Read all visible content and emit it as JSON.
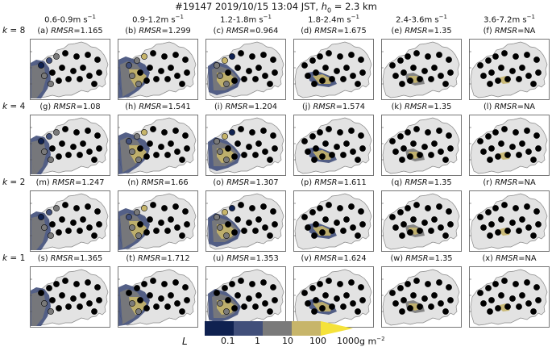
{
  "title": {
    "prefix": "#19147 2019/10/15 13:04 JST, ",
    "h_symbol": "h",
    "h_sub": "0",
    "h_value": " = 2.3 km"
  },
  "columns": [
    {
      "range": "0.6-0.9m s",
      "sup": "−1"
    },
    {
      "range": "0.9-1.2m s",
      "sup": "−1"
    },
    {
      "range": "1.2-1.8m s",
      "sup": "−1"
    },
    {
      "range": "1.8-2.4m s",
      "sup": "−1"
    },
    {
      "range": "2.4-3.6m s",
      "sup": "−1"
    },
    {
      "range": "3.6-7.2m s",
      "sup": "−1"
    }
  ],
  "rows": [
    {
      "k_symbol": "k",
      "k_value": " = 8"
    },
    {
      "k_symbol": "k",
      "k_value": " = 4"
    },
    {
      "k_symbol": "k",
      "k_value": " = 2"
    },
    {
      "k_symbol": "k",
      "k_value": " = 1"
    }
  ],
  "panels": [
    [
      {
        "letter": "(a) ",
        "metric": "RMSR",
        "value": "=1.165"
      },
      {
        "letter": "(b) ",
        "metric": "RMSR",
        "value": "=1.299"
      },
      {
        "letter": "(c) ",
        "metric": "RMSR",
        "value": "=0.964"
      },
      {
        "letter": "(d) ",
        "metric": "RMSR",
        "value": "=1.675"
      },
      {
        "letter": "(e) ",
        "metric": "RMSR",
        "value": "=1.35"
      },
      {
        "letter": "(f) ",
        "metric": "RMSR",
        "value": "=NA"
      }
    ],
    [
      {
        "letter": "(g) ",
        "metric": "RMSR",
        "value": "=1.08"
      },
      {
        "letter": "(h) ",
        "metric": "RMSR",
        "value": "=1.541"
      },
      {
        "letter": "(i) ",
        "metric": "RMSR",
        "value": "=1.204"
      },
      {
        "letter": "(j) ",
        "metric": "RMSR",
        "value": "=1.574"
      },
      {
        "letter": "(k) ",
        "metric": "RMSR",
        "value": "=1.35"
      },
      {
        "letter": "(l) ",
        "metric": "RMSR",
        "value": "=NA"
      }
    ],
    [
      {
        "letter": "(m) ",
        "metric": "RMSR",
        "value": "=1.247"
      },
      {
        "letter": "(n) ",
        "metric": "RMSR",
        "value": "=1.66"
      },
      {
        "letter": "(o) ",
        "metric": "RMSR",
        "value": "=1.307"
      },
      {
        "letter": "(p) ",
        "metric": "RMSR",
        "value": "=1.611"
      },
      {
        "letter": "(q) ",
        "metric": "RMSR",
        "value": "=1.35"
      },
      {
        "letter": "(r) ",
        "metric": "RMSR",
        "value": "=NA"
      }
    ],
    [
      {
        "letter": "(s) ",
        "metric": "RMSR",
        "value": "=1.365"
      },
      {
        "letter": "(t) ",
        "metric": "RMSR",
        "value": "=1.712"
      },
      {
        "letter": "(u) ",
        "metric": "RMSR",
        "value": "=1.353"
      },
      {
        "letter": "(v) ",
        "metric": "RMSR",
        "value": "=1.624"
      },
      {
        "letter": "(w) ",
        "metric": "RMSR",
        "value": "=1.35"
      },
      {
        "letter": "(x) ",
        "metric": "RMSR",
        "value": "=NA"
      }
    ]
  ],
  "colorbar": {
    "label": "L",
    "unit": "g m",
    "unit_sup": "−2",
    "ticks": [
      "0.1",
      "1",
      "10",
      "100",
      "1000"
    ],
    "colors": [
      "#0f2150",
      "#414f7a",
      "#7a7a7a",
      "#c7b56a",
      "#f5e23a"
    ]
  },
  "colors": {
    "island": "#e3e3e3",
    "outline": "#888888",
    "station": "#000000"
  },
  "chart_data": {
    "type": "heatmap",
    "description_source": "grid of deposition maps (rows k=8,4,2,1; columns by settling velocity bin)",
    "rmsr": [
      [
        1.165,
        1.299,
        0.964,
        1.675,
        1.35,
        null
      ],
      [
        1.08,
        1.541,
        1.204,
        1.574,
        1.35,
        null
      ],
      [
        1.247,
        1.66,
        1.307,
        1.611,
        1.35,
        null
      ],
      [
        1.365,
        1.712,
        1.353,
        1.624,
        1.35,
        null
      ]
    ],
    "colorbar_ticks": [
      0.1,
      1,
      10,
      100,
      1000
    ]
  }
}
